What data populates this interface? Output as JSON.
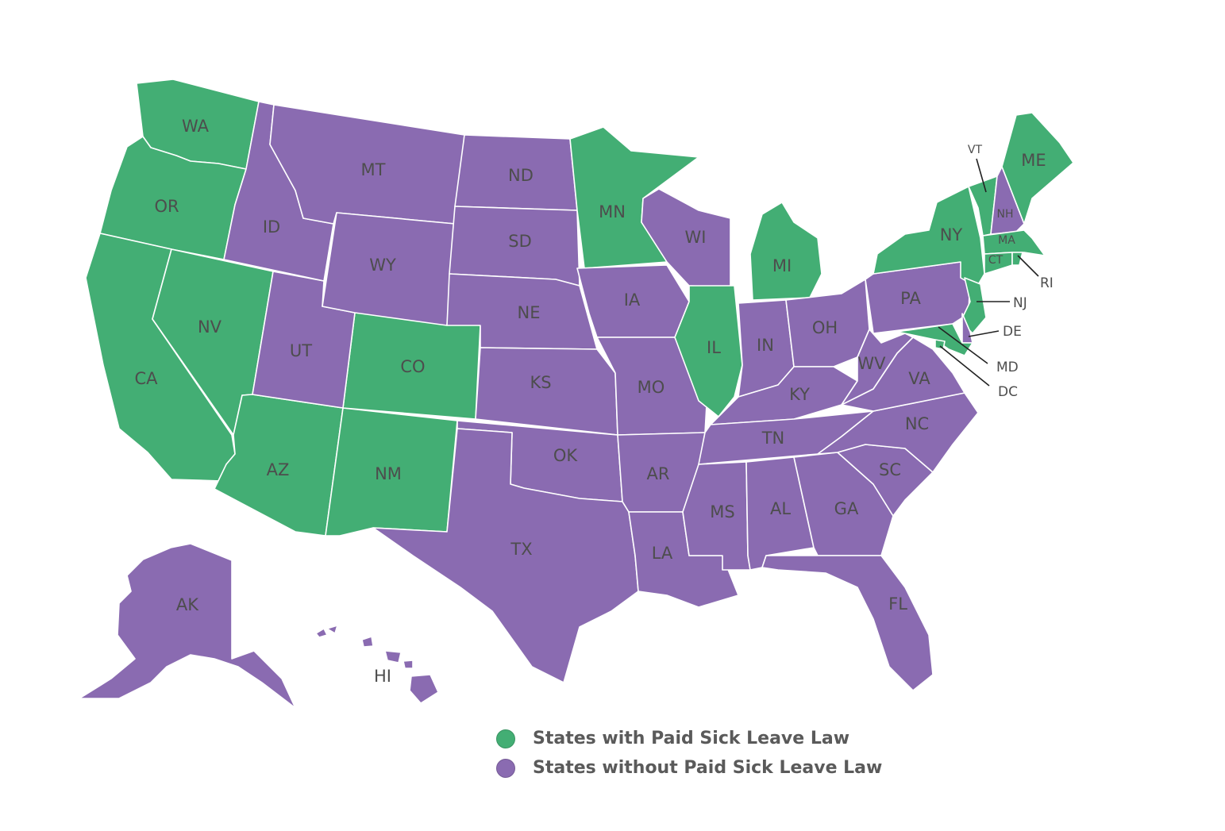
{
  "colors": {
    "with_law": "#43ae74",
    "without_law": "#8a6bb1",
    "border": "#ffffff",
    "label": "#4d4d4d"
  },
  "legend": {
    "with_law": "States with Paid Sick Leave Law",
    "without_law": "States without Paid Sick Leave Law"
  },
  "states": [
    {
      "abbr": "WA",
      "status": "with_law"
    },
    {
      "abbr": "OR",
      "status": "with_law"
    },
    {
      "abbr": "CA",
      "status": "with_law"
    },
    {
      "abbr": "NV",
      "status": "with_law"
    },
    {
      "abbr": "AZ",
      "status": "with_law"
    },
    {
      "abbr": "NM",
      "status": "with_law"
    },
    {
      "abbr": "CO",
      "status": "with_law"
    },
    {
      "abbr": "MN",
      "status": "with_law"
    },
    {
      "abbr": "IL",
      "status": "with_law"
    },
    {
      "abbr": "MI",
      "status": "with_law"
    },
    {
      "abbr": "NY",
      "status": "with_law"
    },
    {
      "abbr": "VT",
      "status": "with_law"
    },
    {
      "abbr": "ME",
      "status": "with_law"
    },
    {
      "abbr": "MA",
      "status": "with_law"
    },
    {
      "abbr": "CT",
      "status": "with_law"
    },
    {
      "abbr": "RI",
      "status": "with_law"
    },
    {
      "abbr": "NJ",
      "status": "with_law"
    },
    {
      "abbr": "MD",
      "status": "with_law"
    },
    {
      "abbr": "DC",
      "status": "with_law"
    },
    {
      "abbr": "ID",
      "status": "without_law"
    },
    {
      "abbr": "MT",
      "status": "without_law"
    },
    {
      "abbr": "WY",
      "status": "without_law"
    },
    {
      "abbr": "UT",
      "status": "without_law"
    },
    {
      "abbr": "ND",
      "status": "without_law"
    },
    {
      "abbr": "SD",
      "status": "without_law"
    },
    {
      "abbr": "NE",
      "status": "without_law"
    },
    {
      "abbr": "KS",
      "status": "without_law"
    },
    {
      "abbr": "OK",
      "status": "without_law"
    },
    {
      "abbr": "TX",
      "status": "without_law"
    },
    {
      "abbr": "IA",
      "status": "without_law"
    },
    {
      "abbr": "MO",
      "status": "without_law"
    },
    {
      "abbr": "AR",
      "status": "without_law"
    },
    {
      "abbr": "LA",
      "status": "without_law"
    },
    {
      "abbr": "WI",
      "status": "without_law"
    },
    {
      "abbr": "IN",
      "status": "without_law"
    },
    {
      "abbr": "OH",
      "status": "without_law"
    },
    {
      "abbr": "KY",
      "status": "without_law"
    },
    {
      "abbr": "TN",
      "status": "without_law"
    },
    {
      "abbr": "MS",
      "status": "without_law"
    },
    {
      "abbr": "AL",
      "status": "without_law"
    },
    {
      "abbr": "GA",
      "status": "without_law"
    },
    {
      "abbr": "FL",
      "status": "without_law"
    },
    {
      "abbr": "SC",
      "status": "without_law"
    },
    {
      "abbr": "NC",
      "status": "without_law"
    },
    {
      "abbr": "VA",
      "status": "without_law"
    },
    {
      "abbr": "WV",
      "status": "without_law"
    },
    {
      "abbr": "PA",
      "status": "without_law"
    },
    {
      "abbr": "DE",
      "status": "without_law"
    },
    {
      "abbr": "NH",
      "status": "without_law"
    },
    {
      "abbr": "AK",
      "status": "without_law"
    },
    {
      "abbr": "HI",
      "status": "without_law"
    }
  ]
}
